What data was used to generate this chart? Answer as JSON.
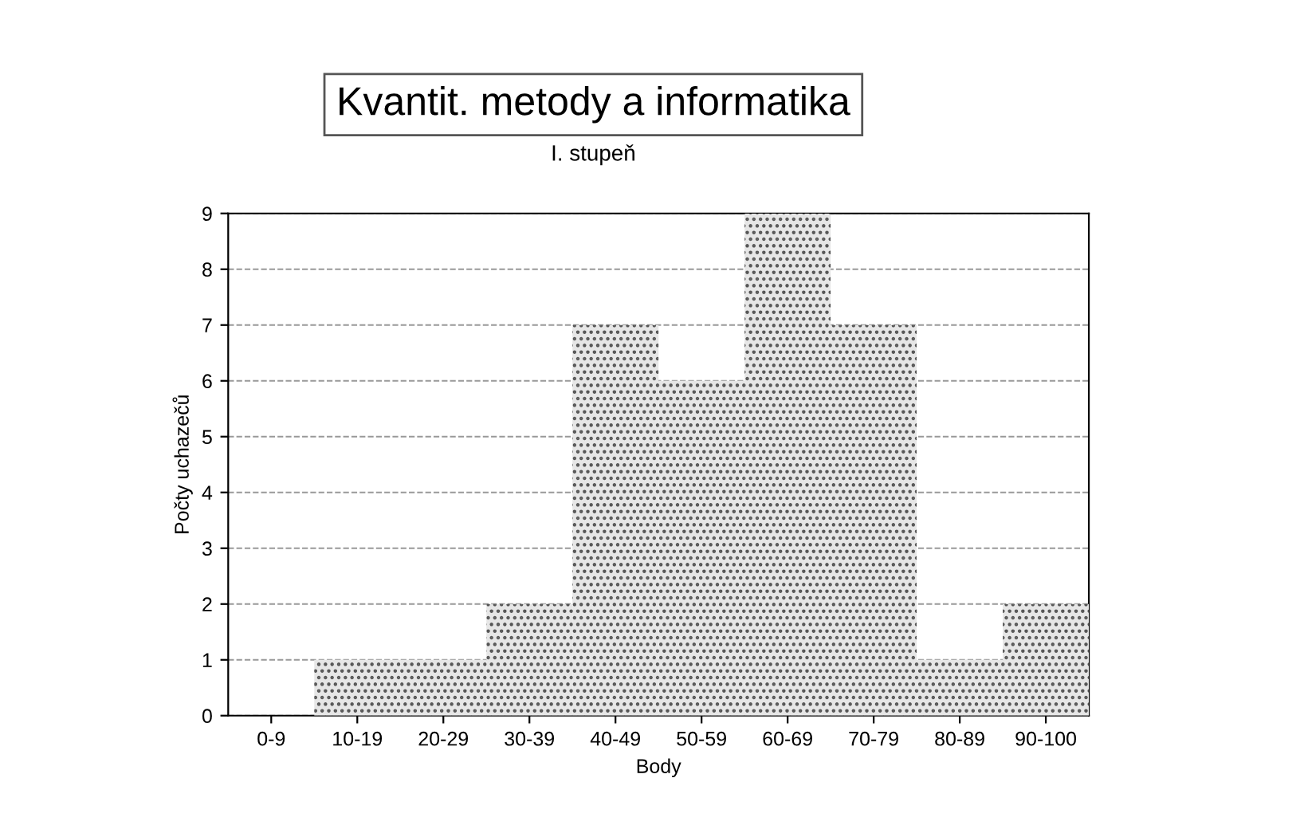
{
  "chart_data": {
    "type": "bar",
    "title": "Kvantit. metody a informatika",
    "subtitle": "I. stupeň",
    "xlabel": "Body",
    "ylabel": "Počty uchazečů",
    "categories": [
      "0-9",
      "10-19",
      "20-29",
      "30-39",
      "40-49",
      "50-59",
      "60-69",
      "70-79",
      "80-89",
      "90-100"
    ],
    "values": [
      0,
      1,
      1,
      2,
      7,
      6,
      9,
      7,
      1,
      2
    ],
    "color": "#e6e6e6",
    "ylim": [
      0,
      9
    ],
    "yticks": [
      0,
      1,
      2,
      3,
      4,
      5,
      6,
      7,
      8,
      9
    ],
    "grid": "y"
  }
}
